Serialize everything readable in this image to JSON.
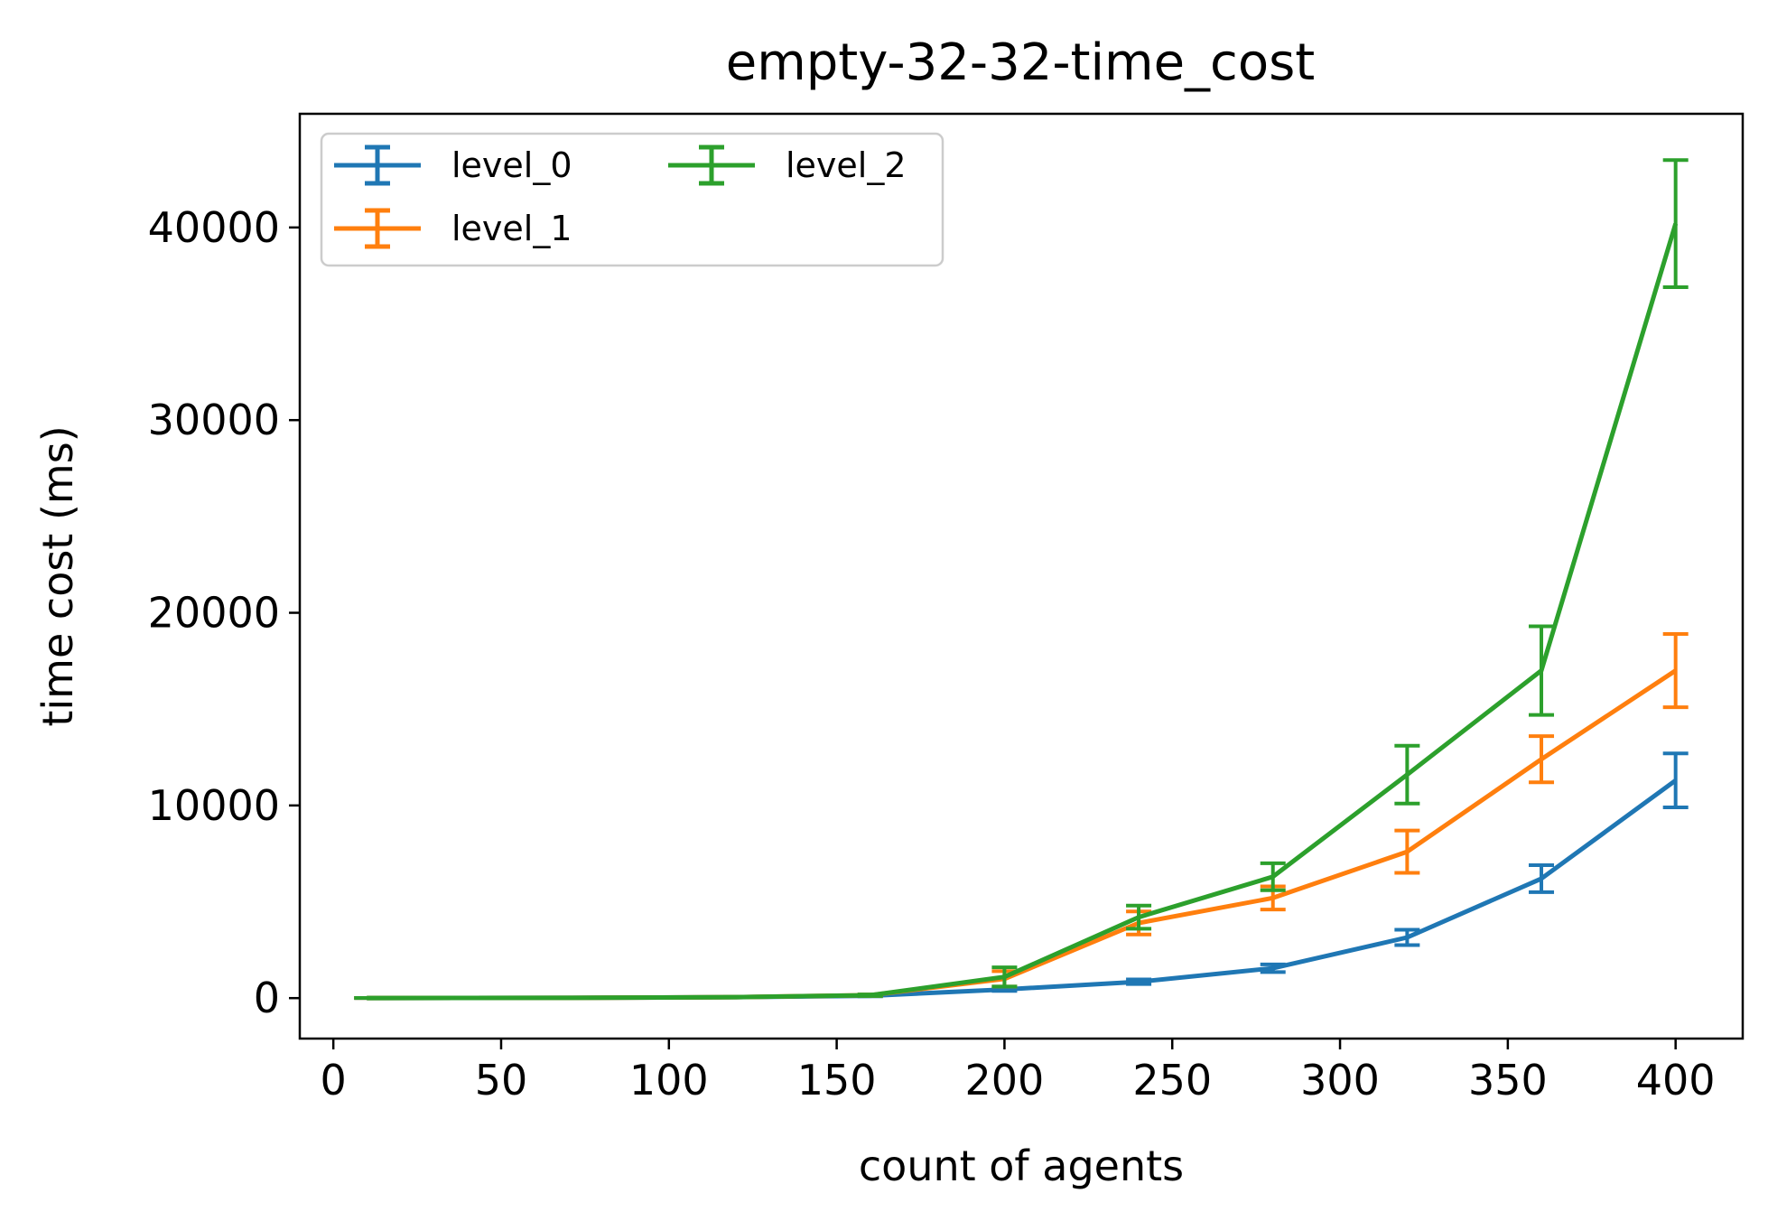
{
  "chart_data": {
    "type": "line",
    "title": "empty-32-32-time_cost",
    "xlabel": "count of agents",
    "ylabel": "time cost (ms)",
    "xlim": [
      -10,
      420
    ],
    "ylim": [
      -2100,
      45900
    ],
    "x_ticks": [
      0,
      50,
      100,
      150,
      200,
      250,
      300,
      350,
      400
    ],
    "y_ticks": [
      0,
      10000,
      20000,
      30000,
      40000
    ],
    "grid": false,
    "legend_position": "top-left",
    "legend_columns": 2,
    "error_bars": true,
    "x": [
      10,
      40,
      80,
      120,
      160,
      200,
      240,
      280,
      320,
      360,
      400
    ],
    "series": [
      {
        "name": "level_0",
        "color": "#1f77b4",
        "values": [
          5,
          10,
          20,
          50,
          120,
          450,
          850,
          1550,
          3150,
          6200,
          11300
        ],
        "errors": [
          2,
          3,
          5,
          10,
          30,
          80,
          120,
          200,
          400,
          700,
          1400
        ]
      },
      {
        "name": "level_1",
        "color": "#ff7f0e",
        "values": [
          5,
          10,
          20,
          50,
          150,
          1000,
          3900,
          5200,
          7600,
          12400,
          17000
        ],
        "errors": [
          2,
          3,
          5,
          10,
          40,
          400,
          600,
          600,
          1100,
          1200,
          1900
        ]
      },
      {
        "name": "level_2",
        "color": "#2ca02c",
        "values": [
          5,
          10,
          20,
          50,
          150,
          1100,
          4200,
          6300,
          11600,
          17000,
          40200
        ],
        "errors": [
          2,
          3,
          5,
          10,
          40,
          500,
          600,
          700,
          1500,
          2300,
          3300
        ]
      }
    ]
  }
}
